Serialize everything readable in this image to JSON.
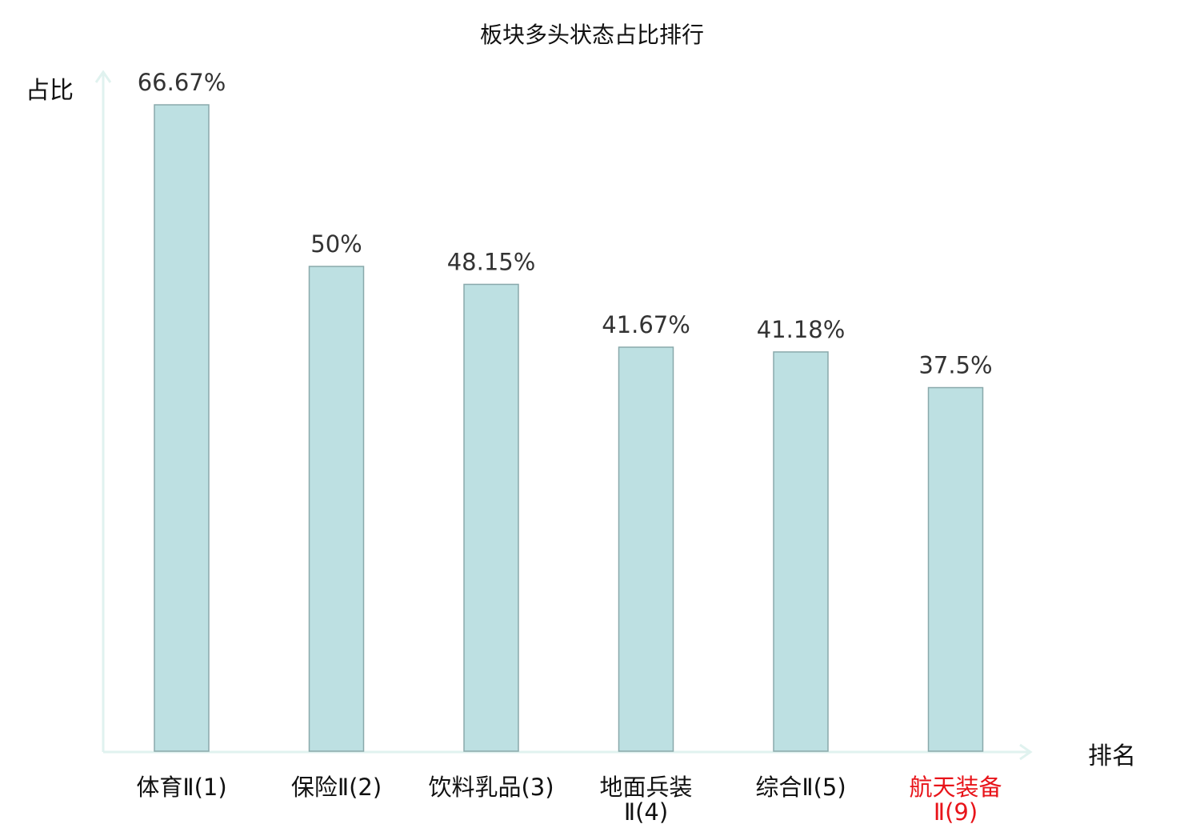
{
  "chart_data": {
    "type": "bar",
    "title": "板块多头状态占比排行",
    "ylabel": "占比",
    "xlabel": "排名",
    "categories": [
      [
        "体育Ⅱ(1)"
      ],
      [
        "保险Ⅱ(2)"
      ],
      [
        "饮料乳品(3)"
      ],
      [
        "地面兵装",
        "Ⅱ(4)"
      ],
      [
        "综合Ⅱ(5)"
      ],
      [
        "航天装备",
        "Ⅱ(9)"
      ]
    ],
    "values": [
      66.67,
      50,
      48.15,
      41.67,
      41.18,
      37.5
    ],
    "data_labels": [
      "66.67%",
      "50%",
      "48.15%",
      "41.67%",
      "41.18%",
      "37.5%"
    ],
    "ylim": [
      0,
      66.67
    ],
    "grid": false,
    "legend": "none",
    "highlight_index": 5,
    "colors": {
      "bar_fill": "#bde0e2",
      "bar_stroke": "#8aa9ab",
      "axis": "#e0f2ef",
      "label_text": "#333333",
      "tick_text": "#111111",
      "highlight_text": "#e8141a"
    }
  }
}
